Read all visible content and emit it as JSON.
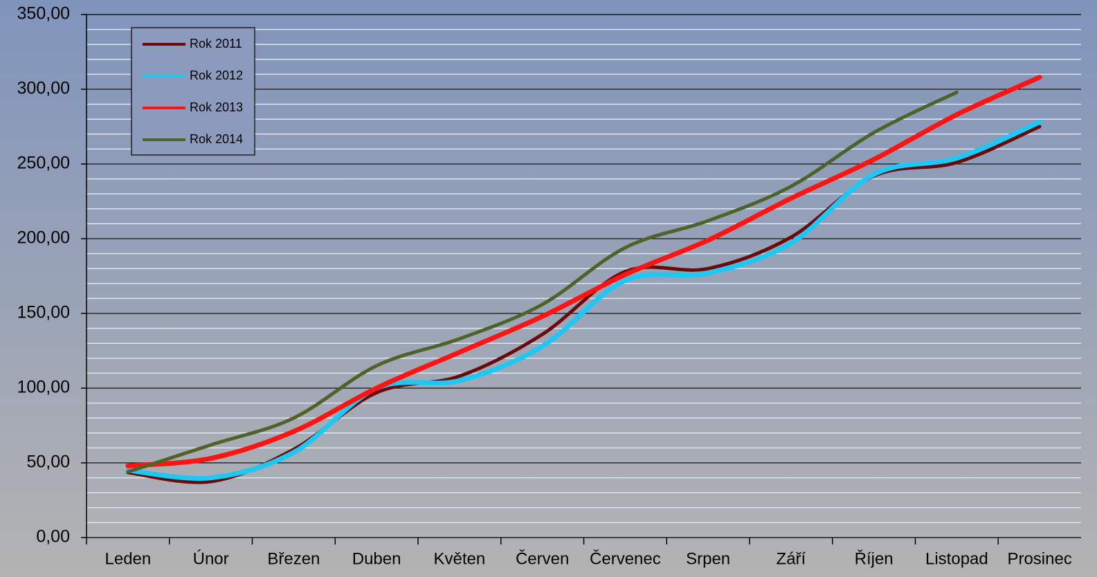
{
  "chart_data": {
    "type": "line",
    "categories": [
      "Leden",
      "Únor",
      "Březen",
      "Duben",
      "Květen",
      "Červen",
      "Červenec",
      "Srpen",
      "Září",
      "Říjen",
      "Listopad",
      "Prosinec"
    ],
    "series": [
      {
        "name": "Rok 2011",
        "color": "#6b0a0a",
        "values": [
          43.5,
          37.5,
          59,
          97,
          108,
          136,
          178,
          180,
          201,
          242,
          251,
          275
        ]
      },
      {
        "name": "Rok 2012",
        "color": "#1ec8f5",
        "values": [
          45,
          40,
          57,
          100,
          105,
          128,
          172,
          177,
          197,
          243,
          254,
          278
        ]
      },
      {
        "name": "Rok 2013",
        "color": "#ff1414",
        "values": [
          48,
          53,
          71,
          100,
          124,
          148,
          176,
          199,
          227,
          253,
          283,
          308
        ]
      },
      {
        "name": "Rok 2014",
        "color": "#4f6228",
        "values": [
          44,
          62,
          80,
          115,
          133,
          156,
          194,
          212,
          235,
          271,
          298,
          null
        ]
      }
    ],
    "ylim": [
      0,
      350
    ],
    "yticks": [
      {
        "value": 0,
        "label": "0,00"
      },
      {
        "value": 50,
        "label": "50,00"
      },
      {
        "value": 100,
        "label": "100,00"
      },
      {
        "value": 150,
        "label": "150,00"
      },
      {
        "value": 200,
        "label": "200,00"
      },
      {
        "value": 250,
        "label": "250,00"
      },
      {
        "value": 300,
        "label": "300,00"
      },
      {
        "value": 350,
        "label": "350,00"
      }
    ],
    "grid": true,
    "minor_grid_step": 10,
    "smooth": true,
    "legend": "top-left"
  }
}
